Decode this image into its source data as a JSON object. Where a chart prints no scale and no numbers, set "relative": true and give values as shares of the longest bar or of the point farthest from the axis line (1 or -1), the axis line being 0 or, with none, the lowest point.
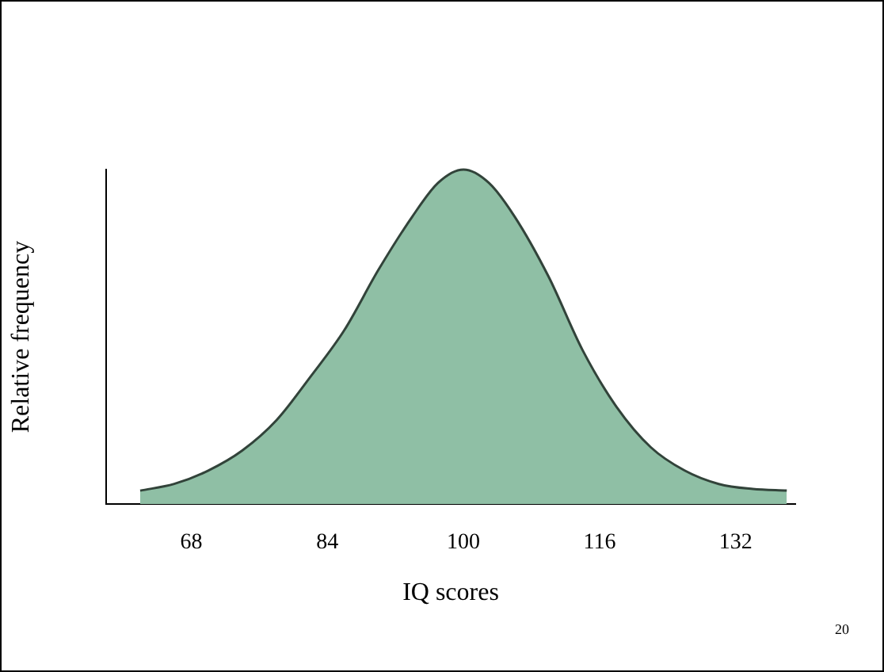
{
  "chart_data": {
    "type": "area",
    "xlabel": "IQ scores",
    "ylabel": "Relative frequency",
    "relative": true,
    "color": "#8fbfa5",
    "x": [
      62,
      66,
      70,
      74,
      78,
      82,
      86,
      90,
      94,
      97,
      100,
      103,
      106,
      110,
      114,
      118,
      122,
      126,
      130,
      134,
      138
    ],
    "values": [
      0.04,
      0.06,
      0.1,
      0.16,
      0.25,
      0.38,
      0.52,
      0.7,
      0.86,
      0.96,
      1,
      0.96,
      0.86,
      0.68,
      0.46,
      0.29,
      0.17,
      0.1,
      0.06,
      0.045,
      0.04
    ],
    "xlim": [
      58,
      139
    ],
    "xticks": [
      68,
      84,
      100,
      116,
      132
    ],
    "annotations": [
      "20"
    ]
  }
}
